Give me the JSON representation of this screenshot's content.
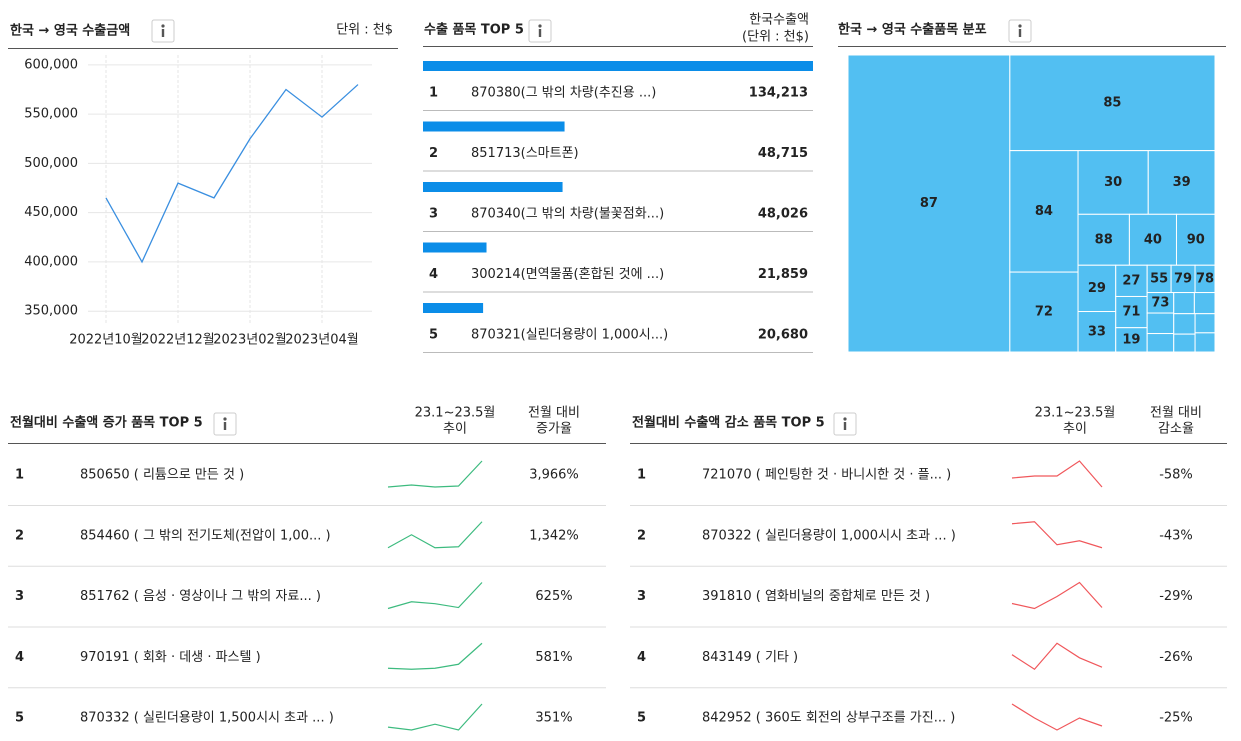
{
  "chart_data": [
    {
      "type": "line",
      "title": "한국 → 영국  수출금액",
      "unit": "단위 : 천$",
      "categories": [
        "2022년10월",
        null,
        "2022년12월",
        null,
        "2023년02월",
        null,
        "2023년04월",
        null
      ],
      "values": [
        465000,
        400000,
        480000,
        465000,
        525000,
        575000,
        547000,
        580000
      ],
      "color": "#3a8fe0",
      "ylim": [
        336000,
        610000
      ],
      "yticks": [
        {
          "value": 350000,
          "label": "350,000"
        },
        {
          "value": 400000,
          "label": "400,000"
        },
        {
          "value": 450000,
          "label": "450,000"
        },
        {
          "value": 500000,
          "label": "500,000"
        },
        {
          "value": 550000,
          "label": "550,000"
        },
        {
          "value": 600000,
          "label": "600,000"
        }
      ],
      "grid": true
    },
    {
      "type": "bar",
      "orientation": "horizontal",
      "title": "수출 품목 TOP 5",
      "value_header": [
        "한국수출액",
        "(단위 : 천$)"
      ],
      "ranks": [
        1,
        2,
        3,
        4,
        5
      ],
      "categories": [
        "870380(그 밖의 차량(추진용 ...)",
        "851713(스마트폰)",
        "870340(그 밖의 차량(불꽃점화...)",
        "300214(면역물품(혼합된 것에 ...)",
        "870321(실린더용량이 1,000시...)"
      ],
      "values": [
        134213,
        48715,
        48026,
        21859,
        20680
      ],
      "value_labels": [
        "134,213",
        "48,715",
        "48,026",
        "21,859",
        "20,680"
      ],
      "color": "#0b8de8",
      "xlim": [
        0,
        134213
      ]
    },
    {
      "type": "treemap",
      "title": "한국 → 영국  수출품목 분포",
      "labels": [
        "87",
        "85",
        "84",
        "72",
        "30",
        "39",
        "88",
        "40",
        "90",
        "29",
        "33",
        "27",
        "71",
        "19",
        "55",
        "79",
        "78",
        "73",
        null,
        null,
        null,
        null,
        null,
        null,
        null,
        null
      ],
      "values": [
        44.1,
        18.0,
        7.6,
        5.0,
        4.1,
        3.9,
        2.4,
        2.2,
        1.8,
        1.6,
        1.4,
        0.9,
        0.9,
        0.7,
        0.6,
        0.6,
        0.5,
        0.5,
        0.5,
        0.45,
        0.4,
        0.4,
        0.4,
        0.35,
        0.35,
        0.35
      ],
      "color": "#52bff2"
    }
  ],
  "increase_table": {
    "title": "전월대비 수출액 증가 품목 TOP 5",
    "trend_header": [
      "23.1~23.5월",
      "추이"
    ],
    "change_header": [
      "전월 대비",
      "증가율"
    ],
    "line_color": "#3dbb7f",
    "rows": [
      {
        "rank": 1,
        "item": "850650 ( 리튬으로 만든 것 )",
        "trend": [
          3,
          5,
          3,
          4,
          29
        ],
        "change": "3,966%"
      },
      {
        "rank": 2,
        "item": "854460 ( 그 밖의 전기도체(전압이 1,00... )",
        "trend": [
          2,
          15,
          2,
          3,
          28
        ],
        "change": "1,342%"
      },
      {
        "rank": 3,
        "item": "851762 ( 음성 · 영상이나 그 밖의 자료... )",
        "trend": [
          2,
          9,
          7,
          3,
          29
        ],
        "change": "625%"
      },
      {
        "rank": 4,
        "item": "970191 ( 회화 · 데생 · 파스텔 )",
        "trend": [
          2,
          1,
          2,
          6,
          27
        ],
        "change": "581%"
      },
      {
        "rank": 5,
        "item": "870332 ( 실린더용량이 1,500시시 초과 ... )",
        "trend": [
          5,
          2,
          8,
          2,
          29
        ],
        "change": "351%"
      }
    ]
  },
  "decrease_table": {
    "title": "전월대비 수출액 감소 품목 TOP 5",
    "trend_header": [
      "23.1~23.5월",
      "추이"
    ],
    "change_header": [
      "전월 대비",
      "감소율"
    ],
    "line_color": "#f0575b",
    "rows": [
      {
        "rank": 1,
        "item": "721070 ( 페인팅한 것 · 바니시한 것 · 플... )",
        "trend": [
          12,
          14,
          14,
          29,
          3
        ],
        "change": "-58%"
      },
      {
        "rank": 2,
        "item": "870322 ( 실린더용량이 1,000시시 초과 ... )",
        "trend": [
          26,
          28,
          5,
          9,
          2
        ],
        "change": "-43%"
      },
      {
        "rank": 3,
        "item": "391810 ( 염화비닐의 중합체로 만든 것 )",
        "trend": [
          7,
          2,
          14,
          28,
          3
        ],
        "change": "-29%"
      },
      {
        "rank": 4,
        "item": "843149 ( 기타 )",
        "trend": [
          16,
          2,
          27,
          13,
          4
        ],
        "change": "-26%"
      },
      {
        "rank": 5,
        "item": "842952 ( 360도 회전의 상부구조를 가진... )",
        "trend": [
          28,
          14,
          2,
          14,
          6
        ],
        "change": "-25%"
      }
    ]
  }
}
